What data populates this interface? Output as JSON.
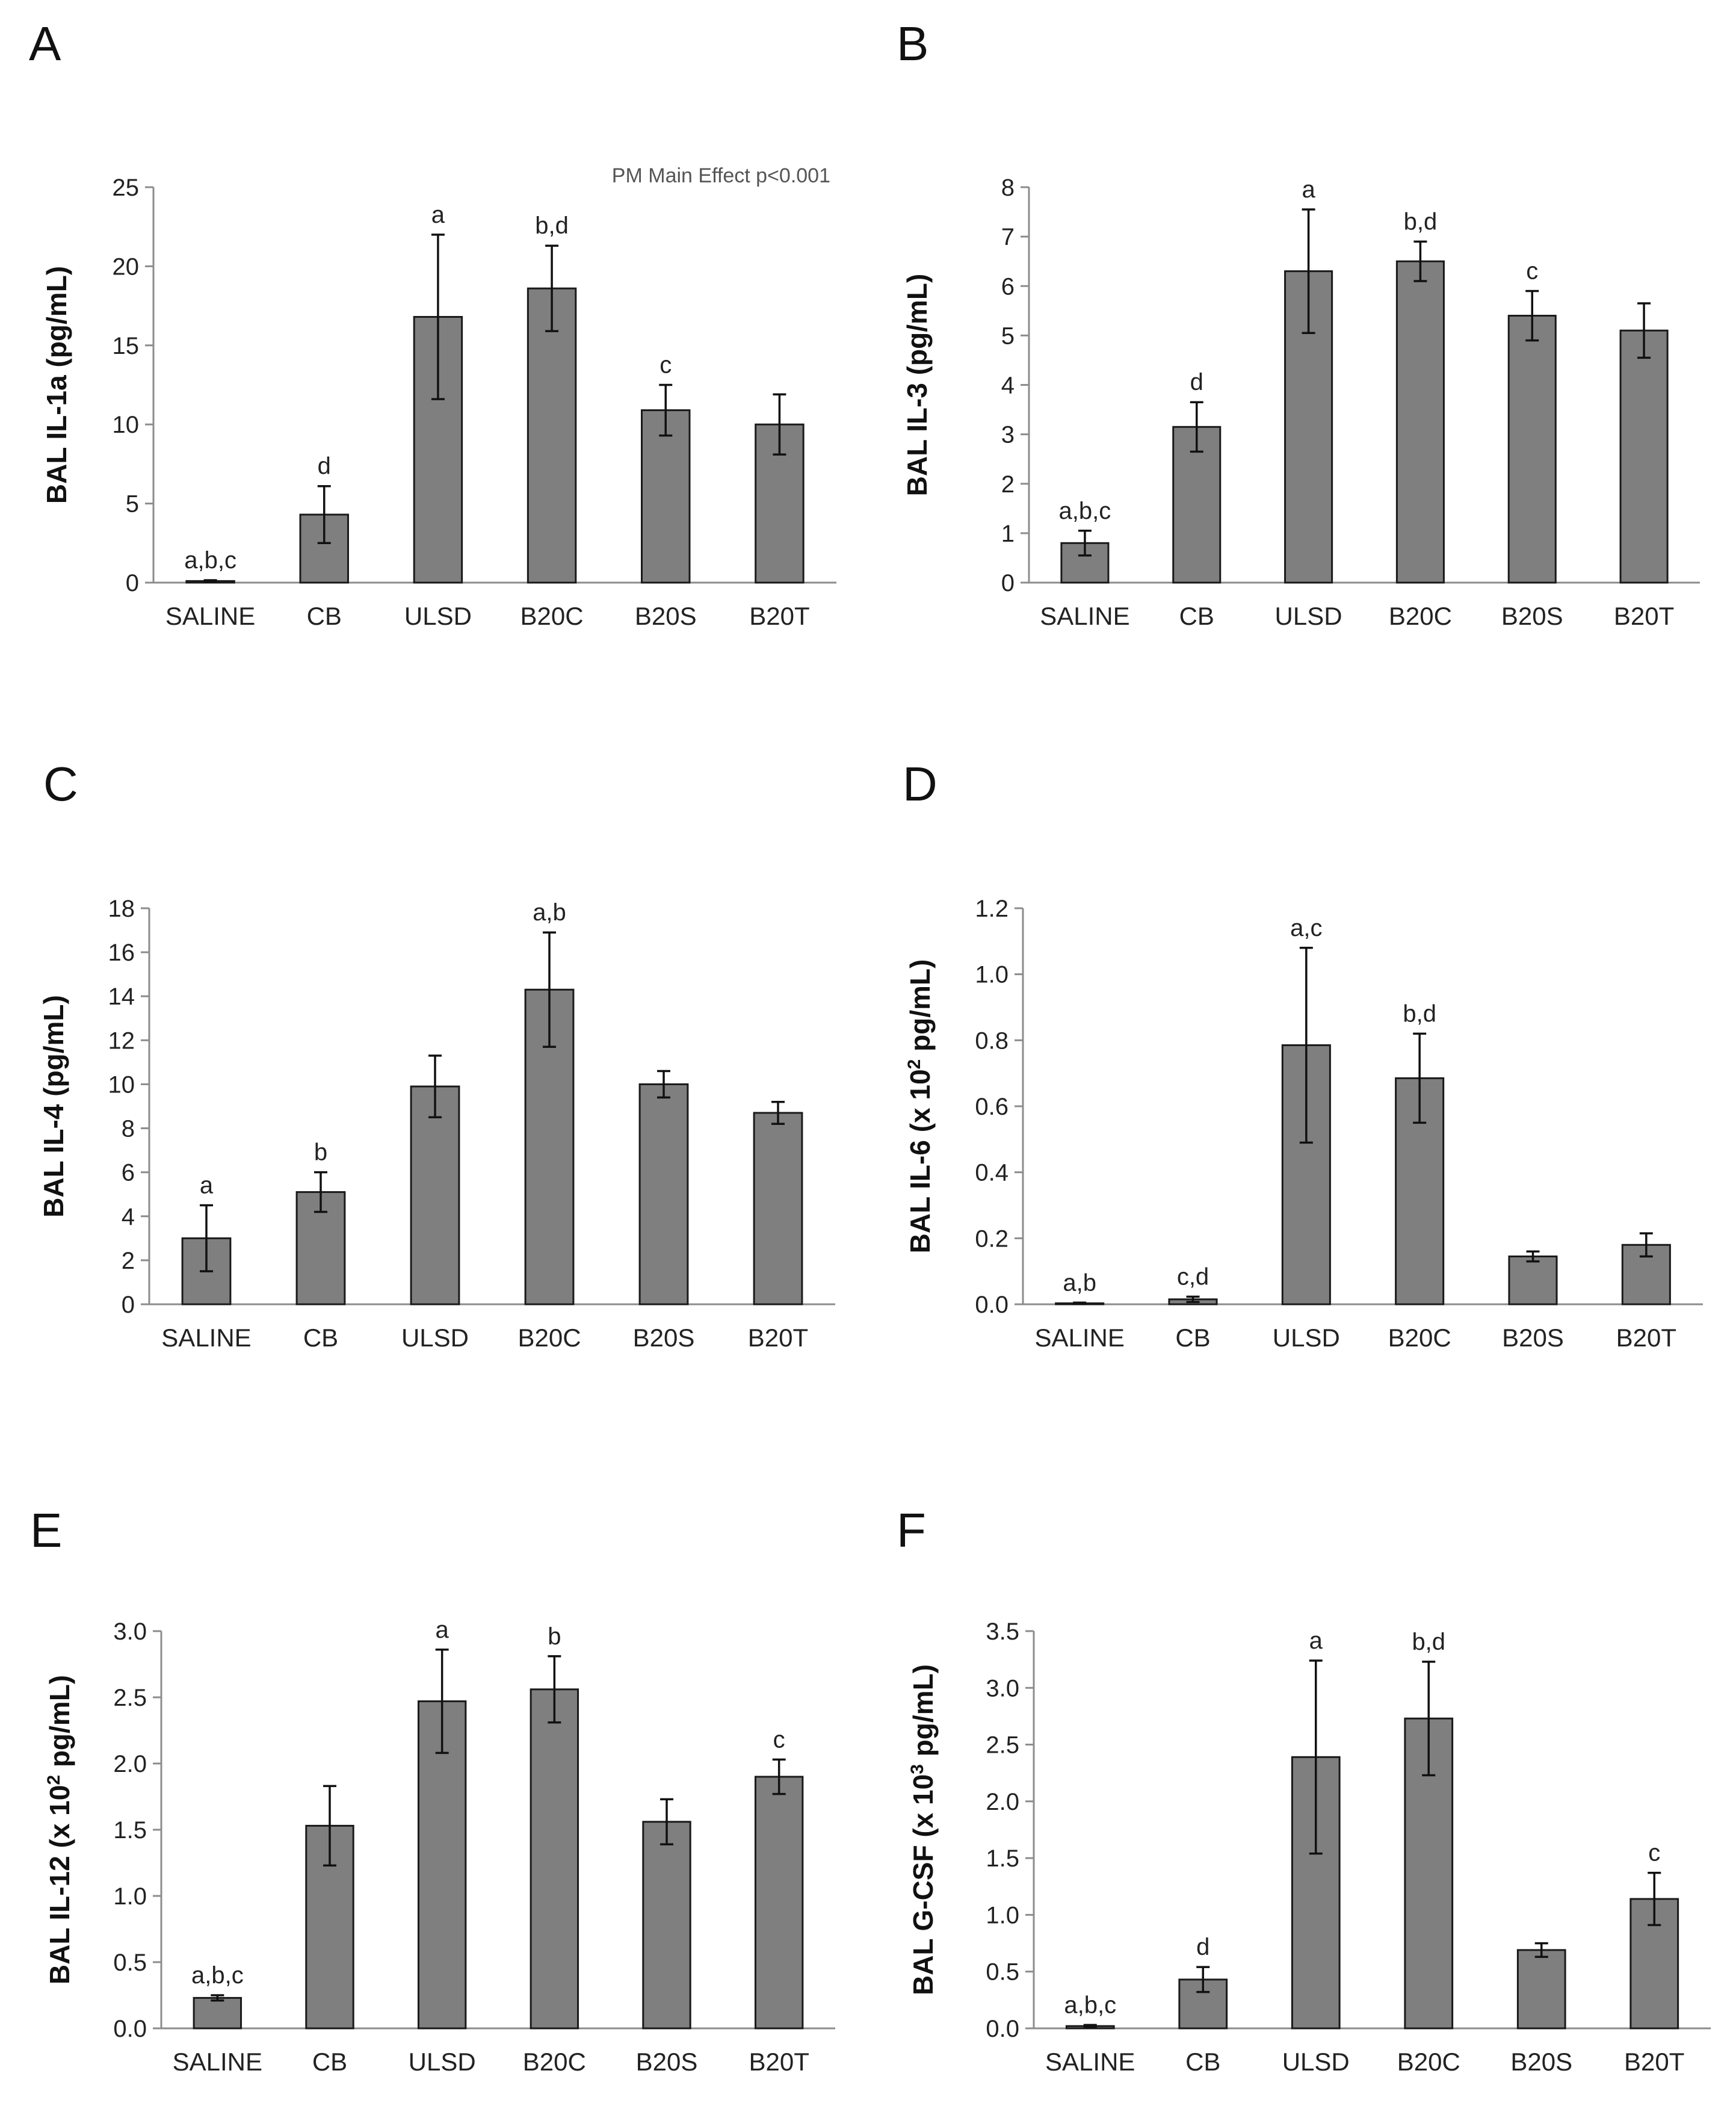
{
  "chart_data": [
    {
      "panel": "A",
      "type": "bar",
      "categories": [
        "SALINE",
        "CB",
        "ULSD",
        "B20C",
        "B20S",
        "B20T"
      ],
      "values": [
        0.1,
        4.3,
        16.8,
        18.6,
        10.9,
        10.0
      ],
      "errors": [
        0.05,
        1.8,
        5.2,
        2.7,
        1.6,
        1.9
      ],
      "sig": [
        "a,b,c",
        "d",
        "a",
        "b,d",
        "c",
        ""
      ],
      "ylabel": "BAL IL-1a (pg/mL)",
      "ylim": [
        0,
        25
      ],
      "yticks": [
        "0",
        "5",
        "10",
        "15",
        "20",
        "25"
      ],
      "annotation": "PM Main Effect p<0.001"
    },
    {
      "panel": "B",
      "type": "bar",
      "categories": [
        "SALINE",
        "CB",
        "ULSD",
        "B20C",
        "B20S",
        "B20T"
      ],
      "values": [
        0.8,
        3.15,
        6.3,
        6.5,
        5.4,
        5.1
      ],
      "errors": [
        0.25,
        0.5,
        1.25,
        0.4,
        0.5,
        0.55
      ],
      "sig": [
        "a,b,c",
        "d",
        "a",
        "b,d",
        "c",
        ""
      ],
      "ylabel": "BAL IL-3 (pg/mL)",
      "ylim": [
        0,
        8
      ],
      "yticks": [
        "0",
        "1",
        "2",
        "3",
        "4",
        "5",
        "6",
        "7",
        "8"
      ]
    },
    {
      "panel": "C",
      "type": "bar",
      "categories": [
        "SALINE",
        "CB",
        "ULSD",
        "B20C",
        "B20S",
        "B20T"
      ],
      "values": [
        3.0,
        5.1,
        9.9,
        14.3,
        10.0,
        8.7
      ],
      "errors": [
        1.5,
        0.9,
        1.4,
        2.6,
        0.6,
        0.5
      ],
      "sig": [
        "a",
        "b",
        "",
        "a,b",
        "",
        ""
      ],
      "ylabel": "BAL IL-4 (pg/mL)",
      "ylim": [
        0,
        18
      ],
      "yticks": [
        "0",
        "2",
        "4",
        "6",
        "8",
        "10",
        "12",
        "14",
        "16",
        "18"
      ]
    },
    {
      "panel": "D",
      "type": "bar",
      "categories": [
        "SALINE",
        "CB",
        "ULSD",
        "B20C",
        "B20S",
        "B20T"
      ],
      "values": [
        0.003,
        0.015,
        0.785,
        0.685,
        0.145,
        0.18
      ],
      "errors": [
        0.002,
        0.008,
        0.295,
        0.135,
        0.015,
        0.035
      ],
      "sig": [
        "a,b",
        "c,d",
        "a,c",
        "b,d",
        "",
        ""
      ],
      "ylabel": "BAL IL-6 (x 10",
      "ylabel_exp": "2",
      "ylabel_end": " pg/mL)",
      "ylim": [
        0,
        1.2
      ],
      "yticks": [
        "0.0",
        "0.2",
        "0.4",
        "0.6",
        "0.8",
        "1.0",
        "1.2"
      ]
    },
    {
      "panel": "E",
      "type": "bar",
      "categories": [
        "SALINE",
        "CB",
        "ULSD",
        "B20C",
        "B20S",
        "B20T"
      ],
      "values": [
        0.23,
        1.53,
        2.47,
        2.56,
        1.56,
        1.9
      ],
      "errors": [
        0.02,
        0.3,
        0.39,
        0.25,
        0.17,
        0.13
      ],
      "sig": [
        "a,b,c",
        "",
        "a",
        "b",
        "",
        "c"
      ],
      "ylabel": "BAL IL-12 (x 10",
      "ylabel_exp": "2",
      "ylabel_end": " pg/mL)",
      "ylim": [
        0,
        3.0
      ],
      "yticks": [
        "0.0",
        "0.5",
        "1.0",
        "1.5",
        "2.0",
        "2.5",
        "3.0"
      ]
    },
    {
      "panel": "F",
      "type": "bar",
      "categories": [
        "SALINE",
        "CB",
        "ULSD",
        "B20C",
        "B20S",
        "B20T"
      ],
      "values": [
        0.02,
        0.43,
        2.39,
        2.73,
        0.69,
        1.14
      ],
      "errors": [
        0.01,
        0.11,
        0.85,
        0.5,
        0.06,
        0.23
      ],
      "sig": [
        "a,b,c",
        "d",
        "a",
        "b,d",
        "",
        "c"
      ],
      "ylabel": "BAL G-CSF (x 10",
      "ylabel_exp": "3",
      "ylabel_end": " pg/mL)",
      "ylim": [
        0,
        3.5
      ],
      "yticks": [
        "0.0",
        "0.5",
        "1.0",
        "1.5",
        "2.0",
        "2.5",
        "3.0",
        "3.5"
      ]
    }
  ]
}
